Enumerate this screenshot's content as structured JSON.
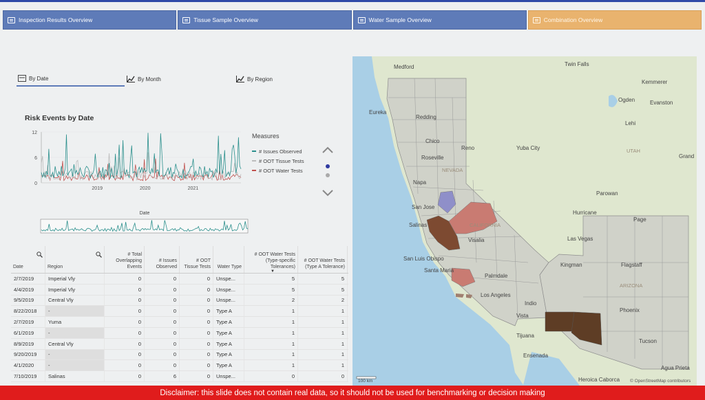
{
  "tabs": [
    {
      "label": "Inspection Results Overview"
    },
    {
      "label": "Tissue Sample Overview"
    },
    {
      "label": "Water Sample Overview"
    },
    {
      "label": "Combination Overview"
    }
  ],
  "subtabs": [
    {
      "label": "By Date"
    },
    {
      "label": "By Month"
    },
    {
      "label": "By Region"
    }
  ],
  "chart": {
    "title": "Risk Events by Date",
    "mini_label": "Date"
  },
  "legend": {
    "title": "Measures",
    "items": [
      {
        "label": "# Issues Observed",
        "color": "#2a8f8c"
      },
      {
        "label": "# OOT Tissue Tests",
        "color": "#bcbcbc"
      },
      {
        "label": "# OOT Water Tests",
        "color": "#c0504d"
      }
    ]
  },
  "chart_data": {
    "type": "line",
    "title": "Risk Events by Date",
    "xlabel": "Date",
    "ylabel": "",
    "yticks": [
      "12",
      "6",
      "0"
    ],
    "ylim": [
      0,
      12
    ],
    "xticks": [
      "2019",
      "2020",
      "2021"
    ],
    "series": [
      {
        "name": "# Issues Observed",
        "color": "#2a8f8c"
      },
      {
        "name": "# OOT Tissue Tests",
        "color": "#bcbcbc"
      },
      {
        "name": "# OOT Water Tests",
        "color": "#c0504d"
      }
    ]
  },
  "table": {
    "headers": [
      "Date",
      "Region",
      "# Total Overlapping Events",
      "# Issues Observed",
      "# OOT Tissue Tests",
      "Water Type",
      "# OOT Water Tests (Type-specific Tolerances)",
      "# OOT Water Tests (Type A Tolerance)"
    ],
    "rows": [
      [
        "2/7/2019",
        "Imperial Vly",
        "0",
        "0",
        "0",
        "Unspe...",
        "5",
        "5"
      ],
      [
        "4/4/2019",
        "Imperial Vly",
        "0",
        "0",
        "0",
        "Unspe...",
        "5",
        "5"
      ],
      [
        "9/5/2019",
        "Central Vly",
        "0",
        "0",
        "0",
        "Unspe...",
        "2",
        "2"
      ],
      [
        "8/22/2018",
        "-",
        "0",
        "0",
        "0",
        "Type A",
        "1",
        "1"
      ],
      [
        "2/7/2019",
        "Yuma",
        "0",
        "0",
        "0",
        "Type A",
        "1",
        "1"
      ],
      [
        "6/1/2019",
        "-",
        "0",
        "0",
        "0",
        "Type A",
        "1",
        "1"
      ],
      [
        "8/9/2019",
        "Central Vly",
        "0",
        "0",
        "0",
        "Type A",
        "1",
        "1"
      ],
      [
        "9/20/2019",
        "-",
        "0",
        "0",
        "0",
        "Type A",
        "1",
        "1"
      ],
      [
        "4/1/2020",
        "-",
        "0",
        "0",
        "0",
        "Type A",
        "1",
        "1"
      ],
      [
        "7/10/2019",
        "Salinas",
        "0",
        "6",
        "0",
        "Unspe...",
        "0",
        "0"
      ]
    ]
  },
  "map": {
    "cities": [
      "Medford",
      "Twin Falls",
      "Kemmerer",
      "Ogden",
      "Evanston",
      "Eureka",
      "Redding",
      "Lehi",
      "Chico",
      "Reno",
      "Yuba City",
      "Roseville",
      "NEVADA",
      "UTAH",
      "Grand",
      "Napa",
      "San Jose",
      "Salinas",
      "Parowan",
      "Hurricane",
      "Page",
      "Visalia",
      "Las Vegas",
      "San Luis Obispo",
      "Kingman",
      "Flagstaff",
      "Santa Maria",
      "Palmdale",
      "ARIZONA",
      "Los Angeles",
      "Indio",
      "Phoenix",
      "Vista",
      "Tijuana",
      "Tucson",
      "Ensenada",
      "Agua Prieta",
      "Heroica Caborca",
      "CALIFORNIA"
    ],
    "scale": "100 km",
    "attribution": "© OpenStreetMap contributors"
  },
  "disclaimer": "Disclaimer: this slide does not contain real data, so it should not be used for benchmarking or decision making"
}
